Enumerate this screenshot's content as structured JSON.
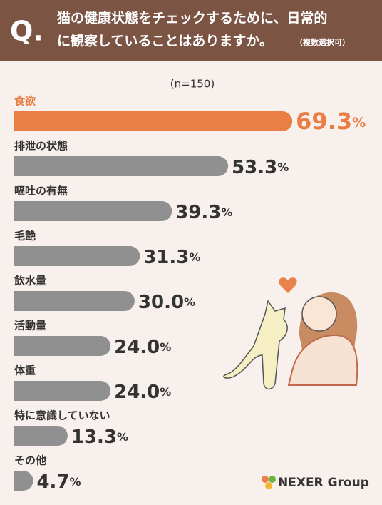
{
  "chart_data": {
    "type": "bar",
    "orientation": "horizontal",
    "title_mark": "Q.",
    "title_lines": [
      "猫の健康状態をチェックするために、日常的",
      "に観察していることはありますか。"
    ],
    "title_note": "（複数選択可）",
    "subtitle": "(n=150)",
    "categories": [
      "食欲",
      "排泄の状態",
      "嘔吐の有無",
      "毛艶",
      "飲水量",
      "活動量",
      "体重",
      "特に意識していない",
      "その他"
    ],
    "values": [
      69.3,
      53.3,
      39.3,
      31.3,
      30.0,
      24.0,
      24.0,
      13.3,
      4.7
    ],
    "value_labels": [
      "69.3%",
      "53.3%",
      "39.3%",
      "31.3%",
      "30.0%",
      "24.0%",
      "24.0%",
      "13.3%",
      "4.7%"
    ],
    "colors": [
      "#ea7f45",
      "#909090",
      "#909090",
      "#909090",
      "#909090",
      "#909090",
      "#909090",
      "#909090",
      "#909090"
    ],
    "label_colors": [
      "#ea7f45",
      "#333333",
      "#333333",
      "#333333",
      "#333333",
      "#333333",
      "#333333",
      "#333333",
      "#333333"
    ],
    "xlim": [
      0,
      100
    ],
    "logo": "NEXER Group"
  }
}
